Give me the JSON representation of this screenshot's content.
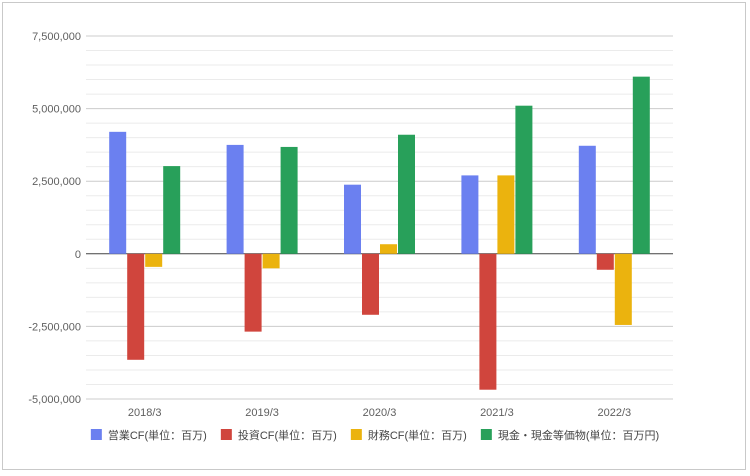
{
  "chart_data": {
    "type": "bar",
    "categories": [
      "2018/3",
      "2019/3",
      "2020/3",
      "2021/3",
      "2022/3"
    ],
    "series": [
      {
        "name": "営業CF(単位：百万)",
        "color": "#6b80f0",
        "values": [
          4200000,
          3750000,
          2380000,
          2700000,
          3720000
        ]
      },
      {
        "name": "投資CF(単位：百万)",
        "color": "#d0453d",
        "values": [
          -3650000,
          -2680000,
          -2100000,
          -4680000,
          -550000
        ]
      },
      {
        "name": "財務CF(単位：百万)",
        "color": "#ebb30e",
        "values": [
          -450000,
          -500000,
          330000,
          2700000,
          -2450000
        ]
      },
      {
        "name": "現金・現金等価物(単位：百万円)",
        "color": "#28a05a",
        "values": [
          3020000,
          3680000,
          4100000,
          5100000,
          6100000
        ]
      }
    ],
    "ylim": [
      -5000000,
      7500000
    ],
    "y_ticks": [
      7500000,
      5000000,
      2500000,
      0,
      -2500000,
      -5000000
    ],
    "y_tick_labels": [
      "7,500,000",
      "5,000,000",
      "2,500,000",
      "0",
      "-2,500,000",
      "-5,000,000"
    ],
    "grid": true,
    "legend_position": "bottom",
    "title": "",
    "xlabel": "",
    "ylabel": ""
  }
}
